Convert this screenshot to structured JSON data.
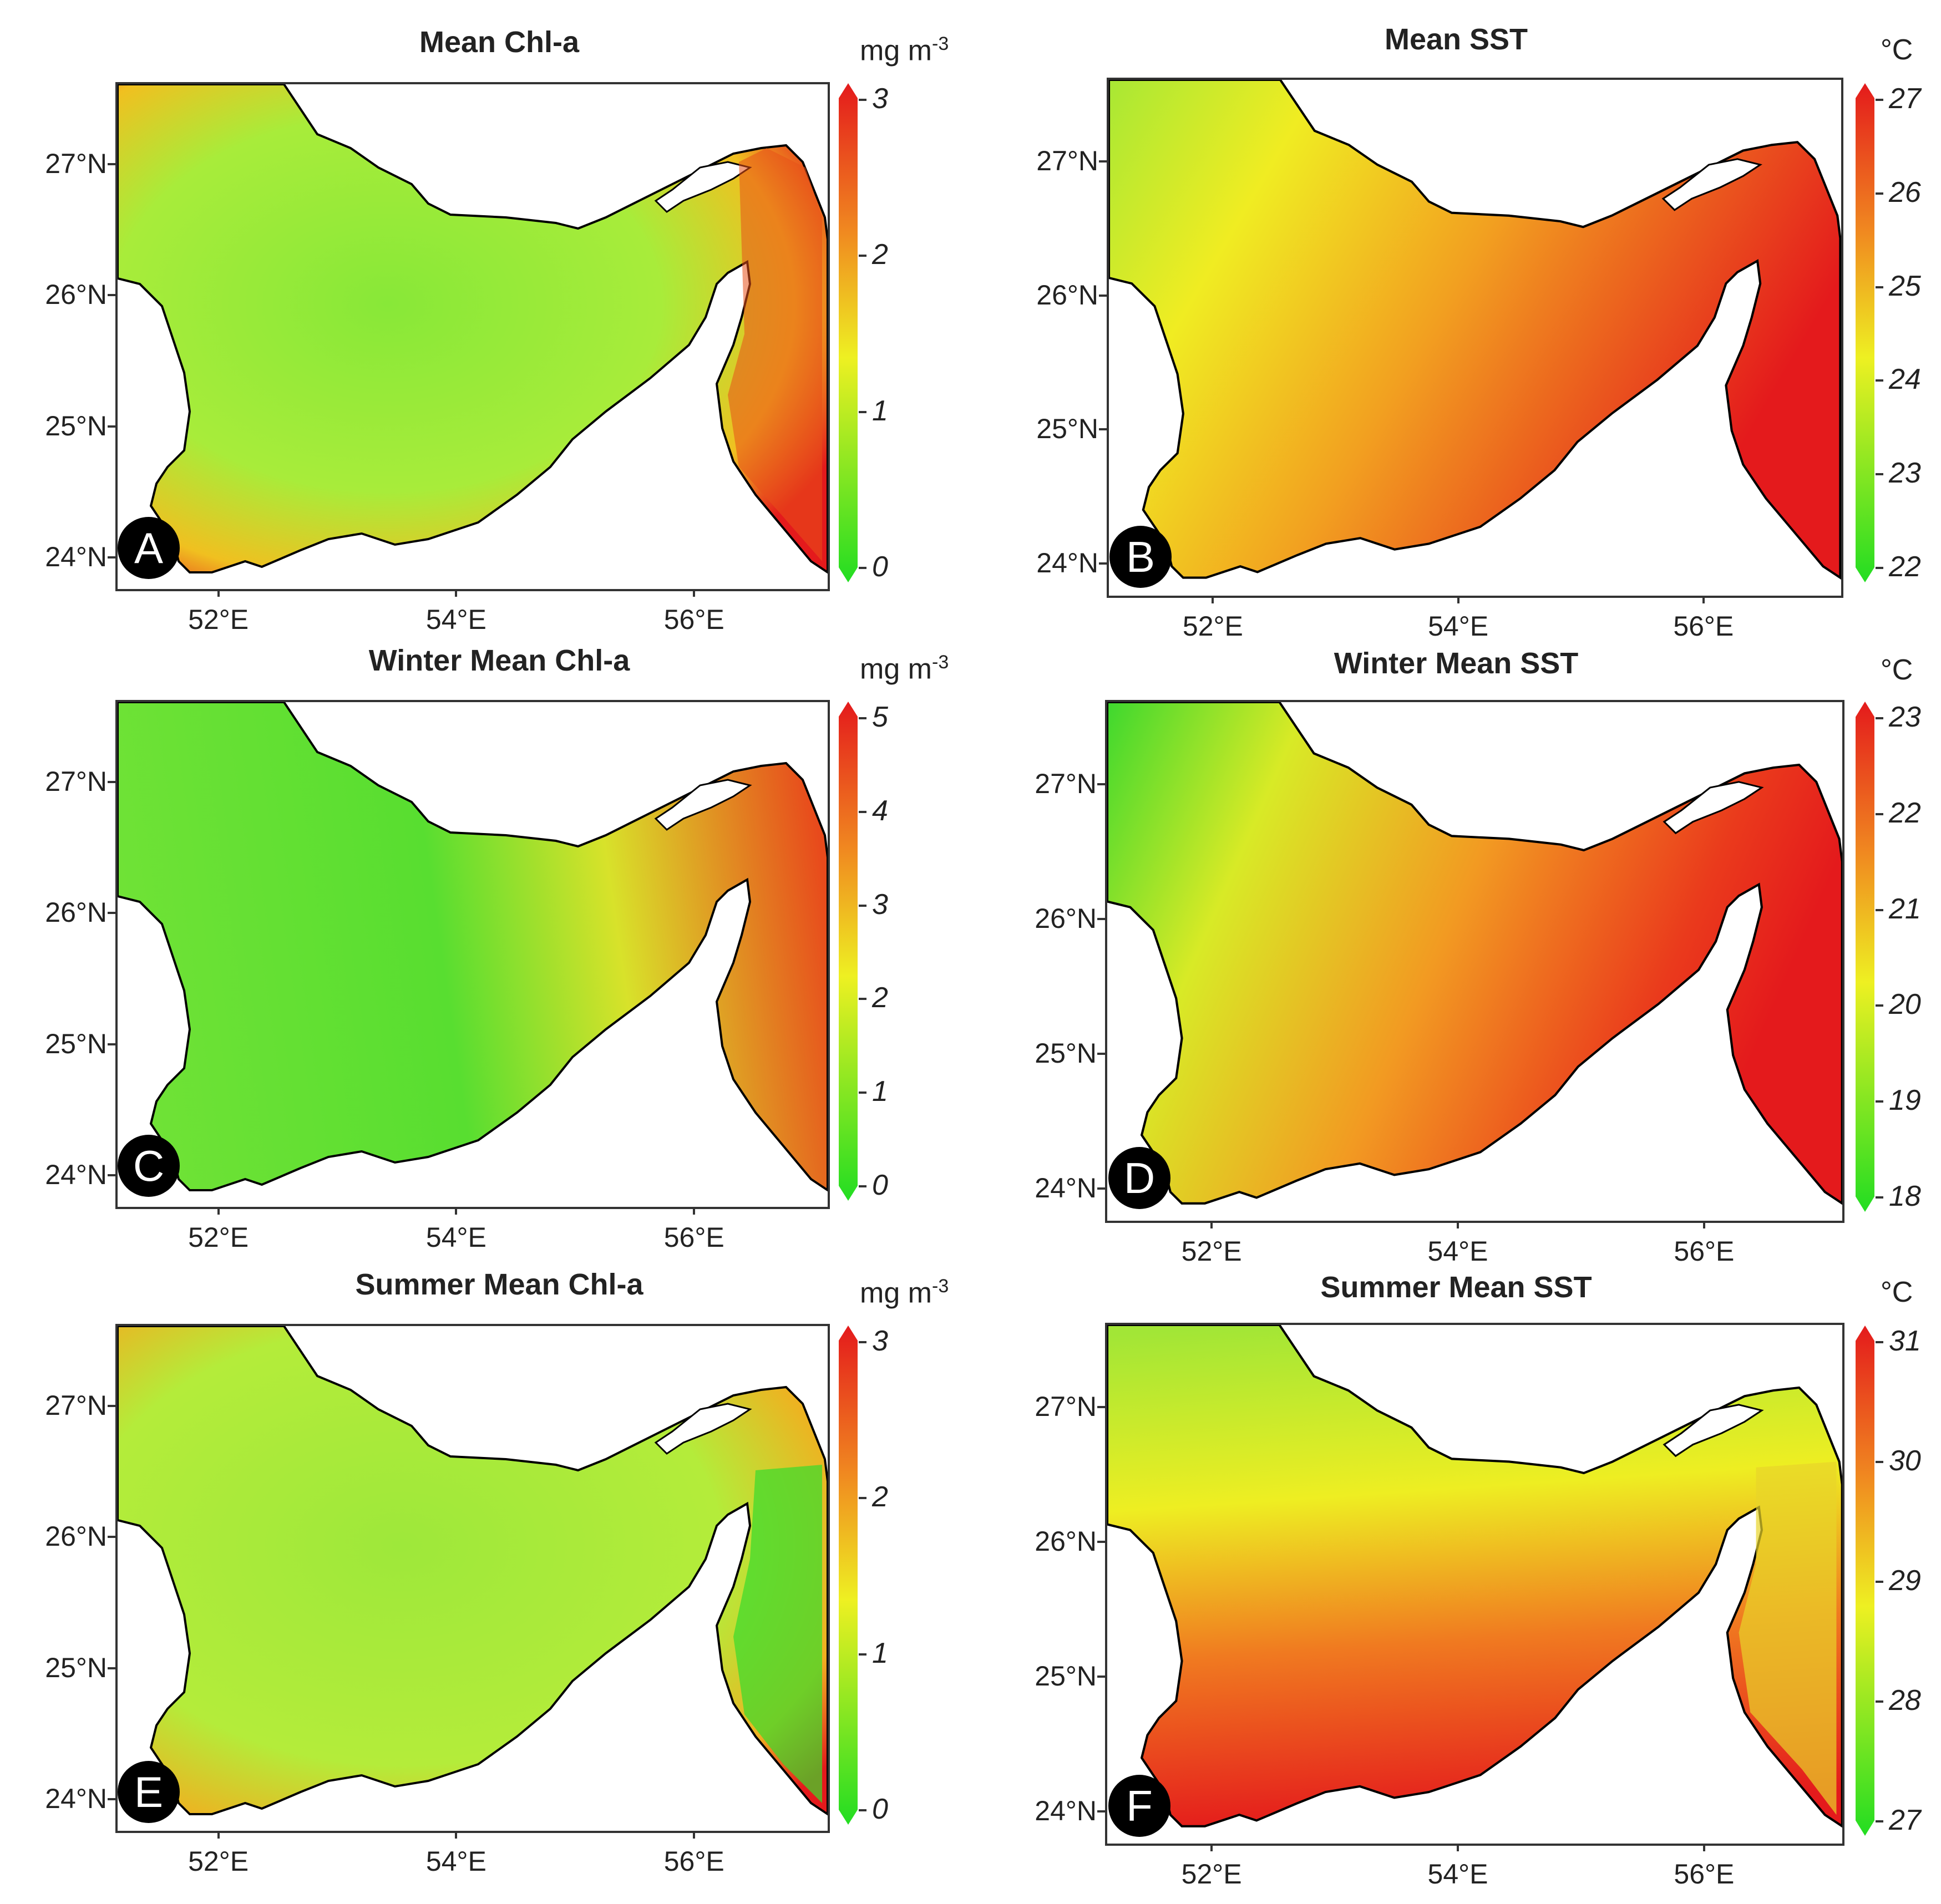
{
  "figure": {
    "lat_labels": [
      "27°N",
      "26°N",
      "25°N",
      "24°N"
    ],
    "lon_labels": [
      "52°E",
      "54°E",
      "56°E"
    ],
    "panels": [
      {
        "id": "A",
        "title": "Mean Chl-a",
        "unit": "mg m",
        "unit_sup": "-3",
        "ticks": [
          "3",
          "2",
          "1",
          "0"
        ],
        "colors": {
          "low": "#22dd22",
          "mid": "#eef022",
          "high": "#e41a1c"
        }
      },
      {
        "id": "B",
        "title": "Mean SST",
        "unit": "°C",
        "unit_sup": "",
        "ticks": [
          "27",
          "26",
          "25",
          "24",
          "23",
          "22"
        ],
        "colors": {
          "low": "#22dd22",
          "mid": "#eef022",
          "high": "#e41a1c"
        }
      },
      {
        "id": "C",
        "title": "Winter Mean Chl-a",
        "unit": "mg m",
        "unit_sup": "-3",
        "ticks": [
          "5",
          "4",
          "3",
          "2",
          "1",
          "0"
        ],
        "colors": {
          "low": "#22dd22",
          "mid": "#eef022",
          "high": "#e41a1c"
        }
      },
      {
        "id": "D",
        "title": "Winter Mean SST",
        "unit": "°C",
        "unit_sup": "",
        "ticks": [
          "23",
          "22",
          "21",
          "20",
          "19",
          "18"
        ],
        "colors": {
          "low": "#22dd22",
          "mid": "#eef022",
          "high": "#e41a1c"
        }
      },
      {
        "id": "E",
        "title": "Summer Mean Chl-a",
        "unit": "mg m",
        "unit_sup": "-3",
        "ticks": [
          "3",
          "2",
          "1",
          "0"
        ],
        "colors": {
          "low": "#22dd22",
          "mid": "#eef022",
          "high": "#e41a1c"
        }
      },
      {
        "id": "F",
        "title": "Summer Mean SST",
        "unit": "°C",
        "unit_sup": "",
        "ticks": [
          "31",
          "30",
          "29",
          "28",
          "27"
        ],
        "colors": {
          "low": "#22dd22",
          "mid": "#eef022",
          "high": "#e41a1c"
        }
      }
    ]
  }
}
